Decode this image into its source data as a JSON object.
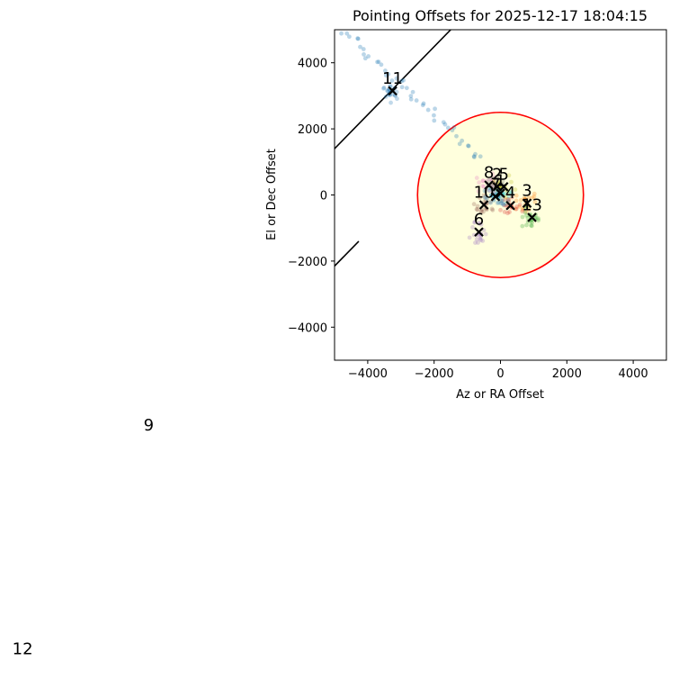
{
  "chart_data": {
    "type": "scatter",
    "title": "Pointing Offsets for 2025-12-17 18:04:15",
    "xlabel": "Az or RA Offset",
    "ylabel": "El or Dec Offset",
    "xlim": [
      -5000,
      5000
    ],
    "ylim": [
      -5000,
      5000
    ],
    "xticks": [
      -4000,
      -2000,
      0,
      2000,
      4000
    ],
    "yticks": [
      -4000,
      -2000,
      0,
      2000,
      4000
    ],
    "xtick_labels": [
      "−4000",
      "−2000",
      "0",
      "2000",
      "4000"
    ],
    "ytick_labels": [
      "−4000",
      "−2000",
      "0",
      "2000",
      "4000"
    ],
    "grid": false,
    "circle": {
      "center": [
        0,
        0
      ],
      "radius": 2500,
      "edge_color": "#ff0000",
      "fill_color": "#ffffdd"
    },
    "diagonal_line": {
      "points": [
        [
          -5000,
          1400
        ],
        [
          -1500,
          5000
        ]
      ],
      "color": "#000000"
    },
    "outside_line": {
      "points": [
        [
          -5000,
          -2150
        ],
        [
          -4270,
          -1400
        ]
      ],
      "color": "#000000"
    },
    "point_colors": [
      "#1f77b4",
      "#ff7f0e",
      "#2ca02c",
      "#d62728",
      "#9467bd",
      "#8c564b",
      "#e377c2",
      "#7f7f7f",
      "#bcbd22",
      "#17becf"
    ],
    "markers": [
      {
        "label": "11",
        "x": -3250,
        "y": 3150
      },
      {
        "label": "3",
        "x": 800,
        "y": -250
      },
      {
        "label": "13",
        "x": 950,
        "y": -680
      },
      {
        "label": "4",
        "x": 300,
        "y": -320
      },
      {
        "label": "6",
        "x": -650,
        "y": -1120
      },
      {
        "label": "10",
        "x": -500,
        "y": -300
      },
      {
        "label": "8",
        "x": -350,
        "y": 300
      },
      {
        "label": "2",
        "x": -100,
        "y": 250
      },
      {
        "label": "5",
        "x": 100,
        "y": 250
      },
      {
        "label": "1",
        "x": 0,
        "y": 50
      },
      {
        "label": "7",
        "x": -150,
        "y": -50
      }
    ],
    "outside_labels": [
      {
        "label": "9",
        "x": -10600,
        "y": -7130
      },
      {
        "label": "12",
        "x": -14400,
        "y": -13900
      }
    ]
  }
}
